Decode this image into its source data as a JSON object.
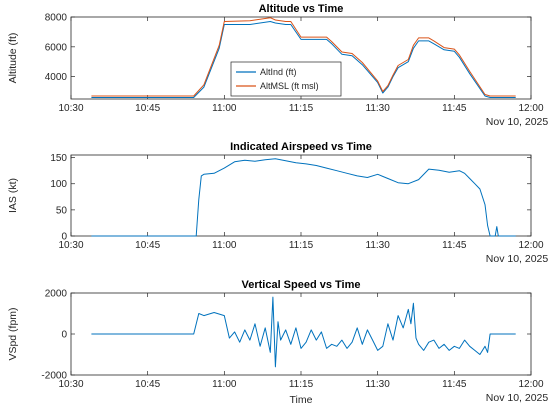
{
  "chart_data": [
    {
      "type": "line",
      "title": "Altitude vs Time",
      "xlabel": "",
      "ylabel": "Altitude (ft)",
      "date_label": "Nov 10, 2025",
      "x_unit": "minutes",
      "xlim": [
        "10:30",
        "12:00"
      ],
      "ylim": [
        2500,
        8000
      ],
      "xticks": [
        "10:30",
        "10:45",
        "11:00",
        "11:15",
        "11:30",
        "11:45",
        "12:00"
      ],
      "yticks": [
        4000,
        6000,
        8000
      ],
      "grid": false,
      "legend": "center",
      "series": [
        {
          "name": "AltInd (ft)",
          "color": "#0072BD",
          "x": [
            "10:34",
            "10:54",
            "10:56",
            "10:59",
            "11:00",
            "11:05",
            "11:09",
            "11:10",
            "11:12",
            "11:13",
            "11:15",
            "11:20",
            "11:21",
            "11:23",
            "11:25",
            "11:27",
            "11:30",
            "11:31",
            "11:32",
            "11:33",
            "11:34",
            "11:36",
            "11:37",
            "11:38",
            "11:40",
            "11:41",
            "11:43",
            "11:45",
            "11:46",
            "11:48",
            "11:51",
            "11:52",
            "11:57"
          ],
          "y": [
            2600,
            2600,
            3300,
            5900,
            7500,
            7500,
            7700,
            7600,
            7500,
            7500,
            6500,
            6500,
            6200,
            5500,
            5400,
            4800,
            3600,
            2900,
            3300,
            4000,
            4600,
            5000,
            5900,
            6400,
            6400,
            6200,
            5800,
            5700,
            5300,
            4200,
            2700,
            2600,
            2600
          ]
        },
        {
          "name": "AltMSL (ft msl)",
          "color": "#D95319",
          "x": [
            "10:34",
            "10:54",
            "10:56",
            "10:59",
            "11:00",
            "11:05",
            "11:09",
            "11:10",
            "11:12",
            "11:13",
            "11:15",
            "11:20",
            "11:21",
            "11:23",
            "11:25",
            "11:27",
            "11:30",
            "11:31",
            "11:32",
            "11:33",
            "11:34",
            "11:36",
            "11:37",
            "11:38",
            "11:40",
            "11:41",
            "11:43",
            "11:45",
            "11:46",
            "11:48",
            "11:51",
            "11:52",
            "11:57"
          ],
          "y": [
            2700,
            2700,
            3450,
            6100,
            7700,
            7750,
            7950,
            7800,
            7700,
            7700,
            6650,
            6650,
            6350,
            5650,
            5550,
            4950,
            3700,
            3000,
            3400,
            4100,
            4750,
            5150,
            6100,
            6600,
            6600,
            6400,
            5950,
            5850,
            5450,
            4350,
            2800,
            2700,
            2700
          ]
        }
      ]
    },
    {
      "type": "line",
      "title": "Indicated Airspeed vs Time",
      "xlabel": "",
      "ylabel": "IAS (kt)",
      "date_label": "Nov 10, 2025",
      "xlim": [
        "10:30",
        "12:00"
      ],
      "ylim": [
        0,
        155
      ],
      "xticks": [
        "10:30",
        "10:45",
        "11:00",
        "11:15",
        "11:30",
        "11:45",
        "12:00"
      ],
      "yticks": [
        0,
        50,
        100,
        150
      ],
      "grid": false,
      "series": [
        {
          "name": "",
          "color": "#0072BD",
          "x": [
            "10:34",
            "10:54.5",
            "10:55",
            "10:55.5",
            "10:56",
            "10:58",
            "11:00",
            "11:02",
            "11:04",
            "11:06",
            "11:08",
            "11:10",
            "11:12",
            "11:14",
            "11:16",
            "11:18",
            "11:20",
            "11:22",
            "11:24",
            "11:26",
            "11:28",
            "11:30",
            "11:32",
            "11:34",
            "11:36",
            "11:38",
            "11:40",
            "11:42",
            "11:44",
            "11:46",
            "11:47",
            "11:48",
            "11:49",
            "11:50",
            "11:51",
            "11:51.5",
            "11:52",
            "11:53",
            "11:53.3",
            "11:53.6",
            "11:57"
          ],
          "y": [
            0,
            0,
            70,
            115,
            118,
            120,
            130,
            142,
            145,
            143,
            146,
            148,
            144,
            140,
            138,
            135,
            130,
            125,
            120,
            115,
            112,
            118,
            110,
            102,
            100,
            108,
            128,
            126,
            122,
            125,
            120,
            110,
            100,
            90,
            60,
            20,
            0,
            0,
            18,
            0,
            0
          ]
        }
      ]
    },
    {
      "type": "line",
      "title": "Vertical Speed vs Time",
      "xlabel": "Time",
      "ylabel": "VSpd (fpm)",
      "date_label": "Nov 10, 2025",
      "xlim": [
        "10:30",
        "12:00"
      ],
      "ylim": [
        -2000,
        2000
      ],
      "xticks": [
        "10:30",
        "10:45",
        "11:00",
        "11:15",
        "11:30",
        "11:45",
        "12:00"
      ],
      "yticks": [
        -2000,
        0,
        2000
      ],
      "grid": false,
      "series": [
        {
          "name": "",
          "color": "#0072BD",
          "x": [
            "10:34",
            "10:54",
            "10:55",
            "10:56",
            "10:58",
            "11:00",
            "11:01",
            "11:02",
            "11:03",
            "11:04",
            "11:05",
            "11:06",
            "11:07",
            "11:08",
            "11:09",
            "11:09.5",
            "11:10",
            "11:10.5",
            "11:11",
            "11:12",
            "11:13",
            "11:14",
            "11:15",
            "11:16",
            "11:17",
            "11:18",
            "11:19",
            "11:20",
            "11:21",
            "11:22",
            "11:23",
            "11:24",
            "11:25",
            "11:26",
            "11:27",
            "11:28",
            "11:29",
            "11:30",
            "11:31",
            "11:32",
            "11:33",
            "11:34",
            "11:35",
            "11:36",
            "11:36.5",
            "11:37",
            "11:37.5",
            "11:38",
            "11:39",
            "11:40",
            "11:41",
            "11:42",
            "11:43",
            "11:44",
            "11:45",
            "11:46",
            "11:47",
            "11:48",
            "11:49",
            "11:50",
            "11:51",
            "11:51.5",
            "11:52",
            "11:57"
          ],
          "y": [
            0,
            0,
            1000,
            900,
            1050,
            900,
            -200,
            100,
            -400,
            200,
            -300,
            500,
            -600,
            300,
            -900,
            1800,
            -1600,
            600,
            -300,
            200,
            -500,
            300,
            -700,
            -400,
            200,
            -300,
            100,
            -700,
            -500,
            -600,
            -300,
            -700,
            -400,
            300,
            -500,
            200,
            -300,
            -800,
            -600,
            500,
            -300,
            900,
            300,
            1200,
            500,
            1500,
            -200,
            -500,
            -800,
            -400,
            -300,
            -700,
            -500,
            -800,
            -600,
            -700,
            -300,
            -600,
            -800,
            -1000,
            -600,
            -900,
            0,
            0
          ]
        }
      ]
    }
  ]
}
